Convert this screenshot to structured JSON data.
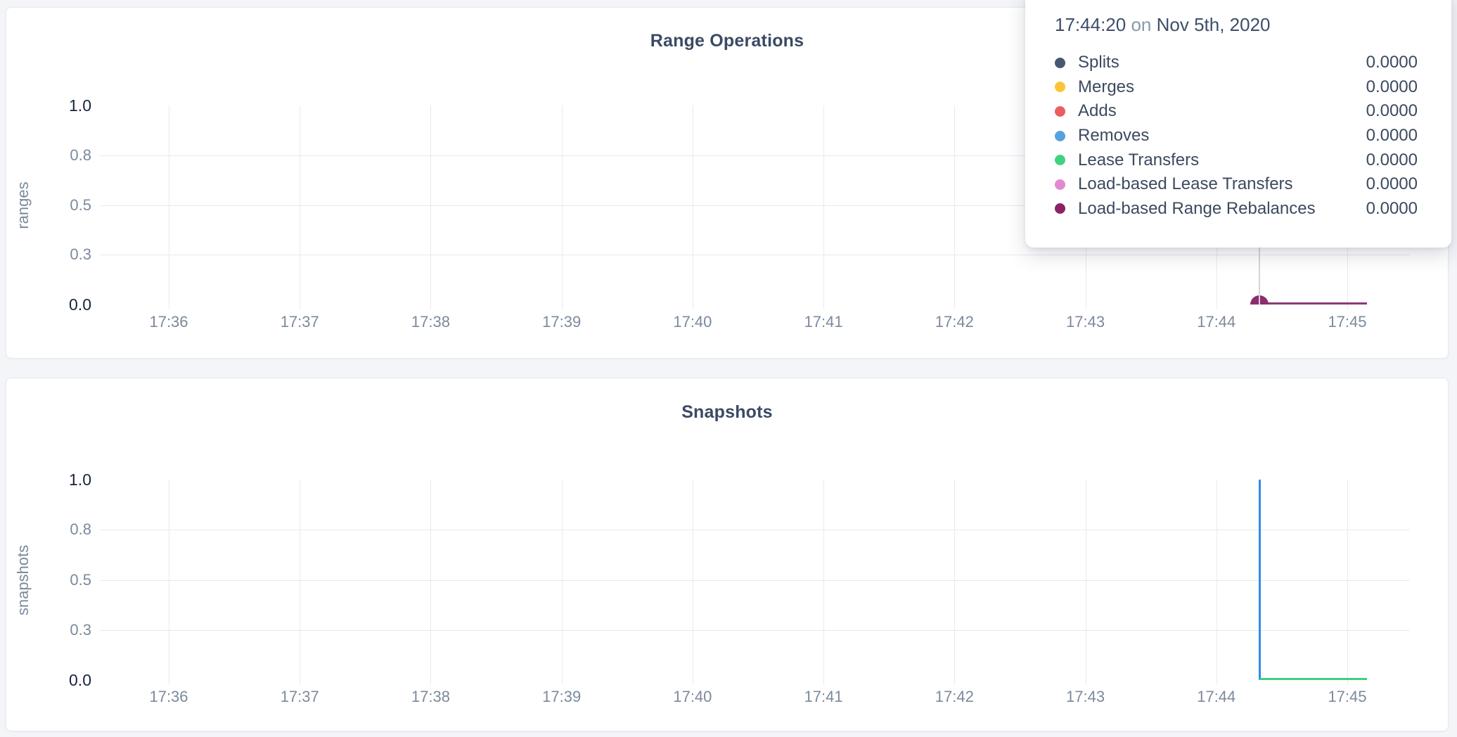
{
  "page": {
    "background": "#f4f5f9"
  },
  "tooltip": {
    "time": "17:44:20",
    "on_word": "on",
    "date": "Nov 5th, 2020",
    "rows": [
      {
        "label": "Splits",
        "value": "0.0000",
        "color": "#475872"
      },
      {
        "label": "Merges",
        "value": "0.0000",
        "color": "#fdc437"
      },
      {
        "label": "Adds",
        "value": "0.0000",
        "color": "#ea5e60"
      },
      {
        "label": "Removes",
        "value": "0.0000",
        "color": "#55a3dd"
      },
      {
        "label": "Lease Transfers",
        "value": "0.0000",
        "color": "#41d183"
      },
      {
        "label": "Load-based Lease Transfers",
        "value": "0.0000",
        "color": "#e18ad1"
      },
      {
        "label": "Load-based Range Rebalances",
        "value": "0.0000",
        "color": "#8b2363"
      }
    ]
  },
  "chart_data": [
    {
      "type": "line",
      "title": "Range Operations",
      "xlabel": "",
      "ylabel": "ranges",
      "ylim": [
        0,
        1
      ],
      "grid": true,
      "yticks": [
        {
          "label": "1.0",
          "value": 1.0,
          "emph": true
        },
        {
          "label": "0.8",
          "value": 0.75,
          "emph": false
        },
        {
          "label": "0.5",
          "value": 0.5,
          "emph": false
        },
        {
          "label": "0.3",
          "value": 0.25,
          "emph": false
        },
        {
          "label": "0.0",
          "value": 0.0,
          "emph": true
        }
      ],
      "xticks": [
        "17:36",
        "17:37",
        "17:38",
        "17:39",
        "17:40",
        "17:41",
        "17:42",
        "17:43",
        "17:44",
        "17:45"
      ],
      "hover": {
        "time": "17:44:20",
        "minutes_after_1736": 8.33
      },
      "series": [
        {
          "name": "Load-based Range Rebalances",
          "color": "#8c3a76",
          "marker_color": "#8c2d6d",
          "line_width": 3,
          "points": [
            {
              "m": 8.33,
              "v": 0
            },
            {
              "m": 9.15,
              "v": 0
            }
          ],
          "marker": {
            "m": 8.33,
            "v": 0
          }
        }
      ]
    },
    {
      "type": "line",
      "title": "Snapshots",
      "xlabel": "",
      "ylabel": "snapshots",
      "ylim": [
        0,
        1
      ],
      "grid": true,
      "yticks": [
        {
          "label": "1.0",
          "value": 1.0,
          "emph": true
        },
        {
          "label": "0.8",
          "value": 0.75,
          "emph": false
        },
        {
          "label": "0.5",
          "value": 0.5,
          "emph": false
        },
        {
          "label": "0.3",
          "value": 0.25,
          "emph": false
        },
        {
          "label": "0.0",
          "value": 0.0,
          "emph": true
        }
      ],
      "xticks": [
        "17:36",
        "17:37",
        "17:38",
        "17:39",
        "17:40",
        "17:41",
        "17:42",
        "17:43",
        "17:44",
        "17:45"
      ],
      "series": [
        {
          "name": "blue-series",
          "color": "#2f8bf0",
          "line_width": 3,
          "points": [
            {
              "m": 8.33,
              "v": 0
            },
            {
              "m": 8.33,
              "v": 1
            },
            {
              "m": 8.33,
              "v": 0
            },
            {
              "m": 9.15,
              "v": 0
            }
          ]
        },
        {
          "name": "green-series",
          "color": "#3ecf82",
          "line_width": 3,
          "points": [
            {
              "m": 8.33,
              "v": 0
            },
            {
              "m": 9.15,
              "v": 0
            }
          ]
        }
      ]
    }
  ]
}
